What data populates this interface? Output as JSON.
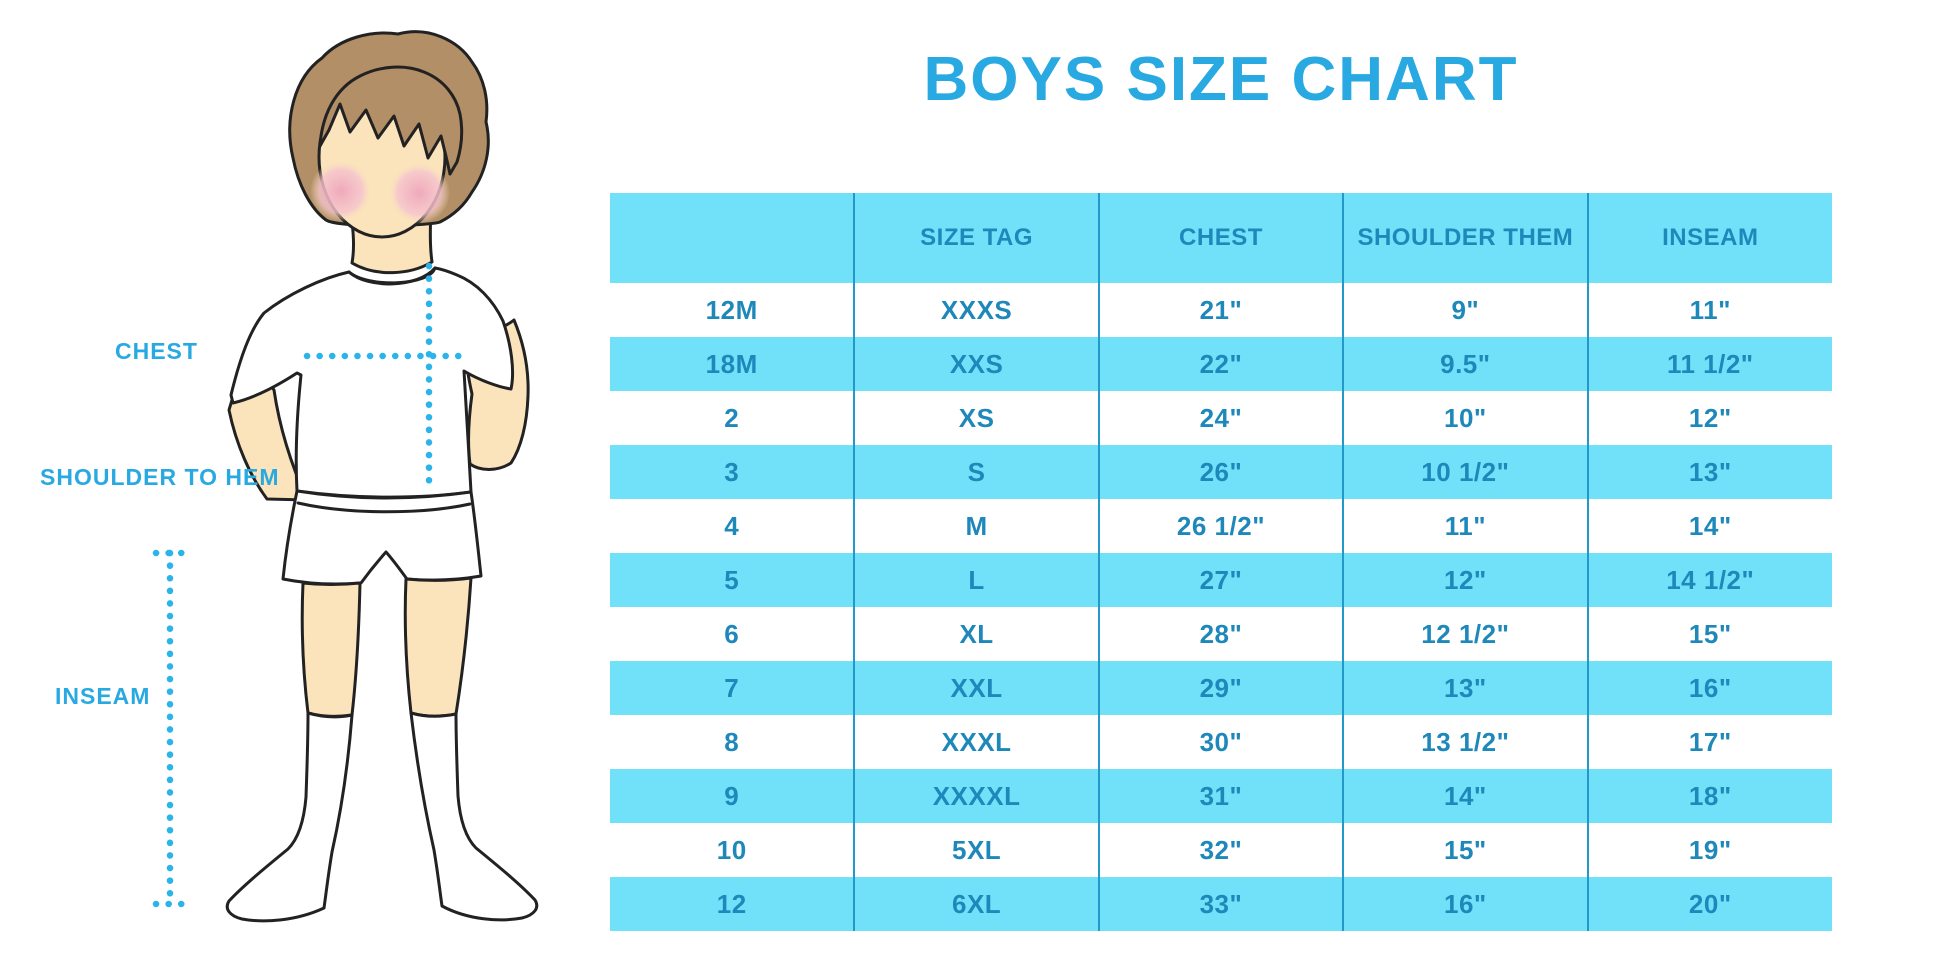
{
  "title": "BOYS SIZE CHART",
  "illustration": {
    "labels": {
      "chest": "CHEST",
      "shoulder_to_hem": "SHOULDER TO HEM",
      "inseam": "INSEAM"
    }
  },
  "colors": {
    "accent_blue": "#29A9E1",
    "dot_cyan": "#2BB4E9",
    "band_cyan": "#71E1FA",
    "table_text": "#1E88BB",
    "table_line": "#2398CB",
    "skin": "#FBE4BC",
    "hair": "#B28F66",
    "blush": "#F2B3C0"
  },
  "chart_data": {
    "type": "table",
    "title": "BOYS SIZE CHART",
    "columns": [
      "",
      "SIZE TAG",
      "CHEST",
      "SHOULDER THEM",
      "INSEAM"
    ],
    "rows": [
      [
        "12M",
        "XXXS",
        "21\"",
        "9\"",
        "11\""
      ],
      [
        "18M",
        "XXS",
        "22\"",
        "9.5\"",
        "11 1/2\""
      ],
      [
        "2",
        "XS",
        "24\"",
        "10\"",
        "12\""
      ],
      [
        "3",
        "S",
        "26\"",
        "10 1/2\"",
        "13\""
      ],
      [
        "4",
        "M",
        "26 1/2\"",
        "11\"",
        "14\""
      ],
      [
        "5",
        "L",
        "27\"",
        "12\"",
        "14 1/2\""
      ],
      [
        "6",
        "XL",
        "28\"",
        "12 1/2\"",
        "15\""
      ],
      [
        "7",
        "XXL",
        "29\"",
        "13\"",
        "16\""
      ],
      [
        "8",
        "XXXL",
        "30\"",
        "13 1/2\"",
        "17\""
      ],
      [
        "9",
        "XXXXL",
        "31\"",
        "14\"",
        "18\""
      ],
      [
        "10",
        "5XL",
        "32\"",
        "15\"",
        "19\""
      ],
      [
        "12",
        "6XL",
        "33\"",
        "16\"",
        "20\""
      ]
    ],
    "row_band_pattern": "alternating, header and even rows cyan, odd rows white",
    "legend_position": "none",
    "grid": "vertical column separators only"
  }
}
